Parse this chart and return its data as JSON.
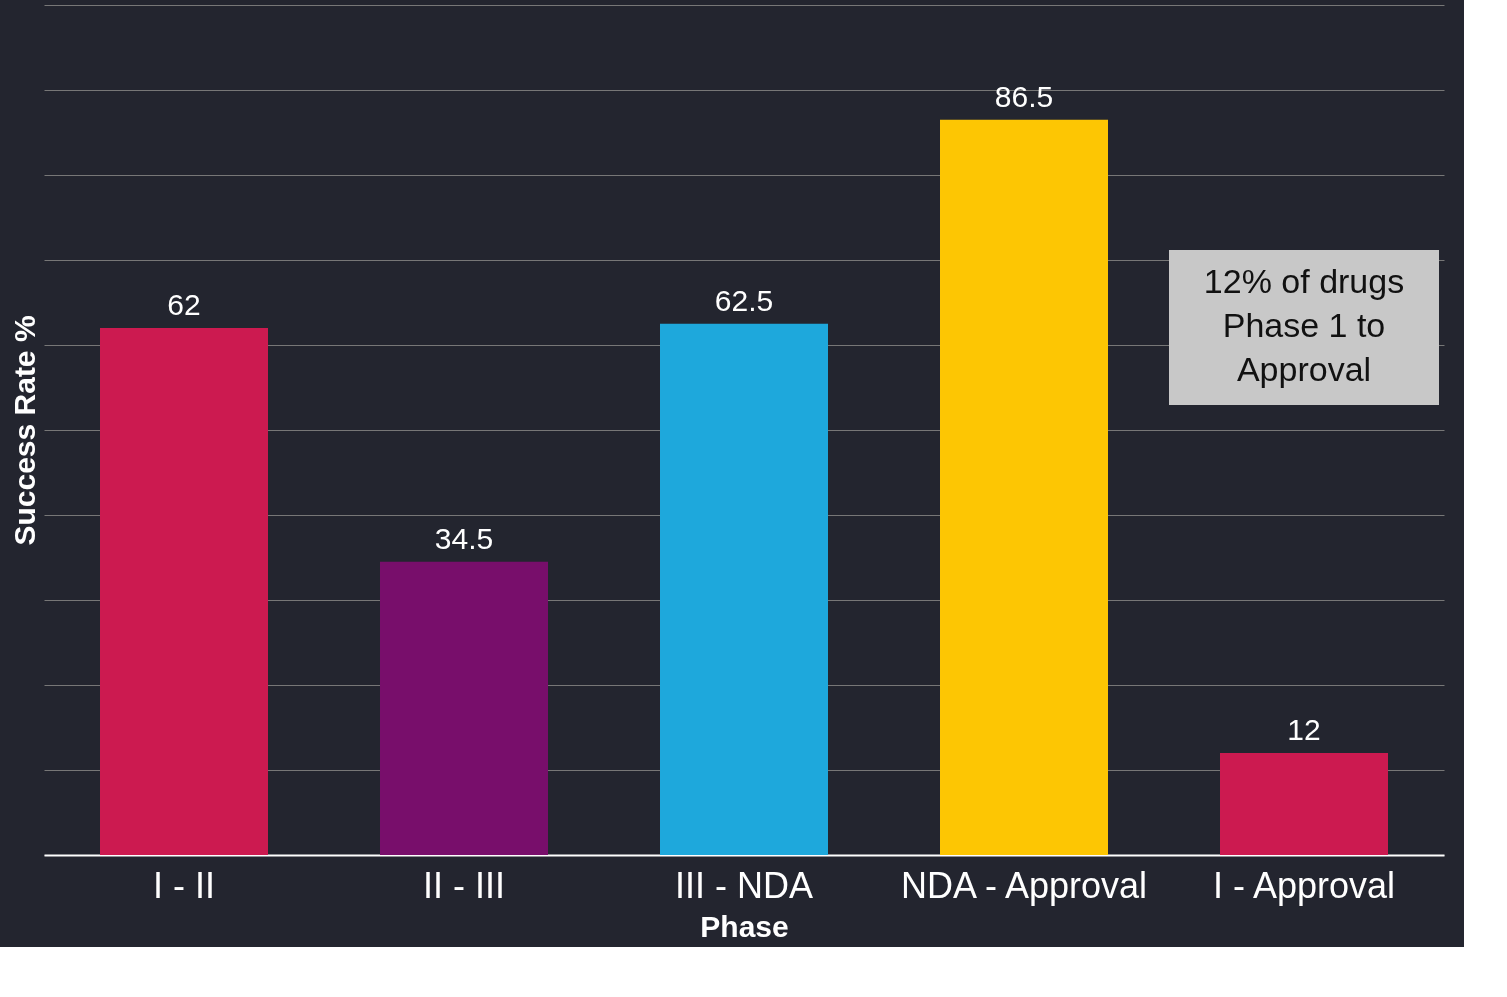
{
  "chart_data": {
    "type": "bar",
    "xlabel": "Phase",
    "ylabel": "Success Rate %",
    "categories": [
      "I - II",
      "II - III",
      "III - NDA",
      "NDA - Approval",
      "I - Approval"
    ],
    "values": [
      62,
      34.5,
      62.5,
      86.5,
      12
    ],
    "colors": [
      "#cc1a50",
      "#780e6b",
      "#1ea8dc",
      "#fdc603",
      "#cc1a50"
    ],
    "data_labels": true,
    "ylim": [
      0,
      100
    ],
    "yticks": [
      {
        "value": 0,
        "label": null
      },
      {
        "value": 10,
        "label": null
      },
      {
        "value": 20,
        "label": null
      },
      {
        "value": 30,
        "label": null
      },
      {
        "value": 40,
        "label": null
      },
      {
        "value": 50,
        "label": null
      },
      {
        "value": 60,
        "label": null
      },
      {
        "value": 70,
        "label": null
      },
      {
        "value": 80,
        "label": null
      },
      {
        "value": 90,
        "label": null
      },
      {
        "value": 100,
        "label": null
      }
    ],
    "grid": "y",
    "tick_labels": "x",
    "annotations": [
      "12% of drugs Phase 1 to Approval"
    ]
  }
}
